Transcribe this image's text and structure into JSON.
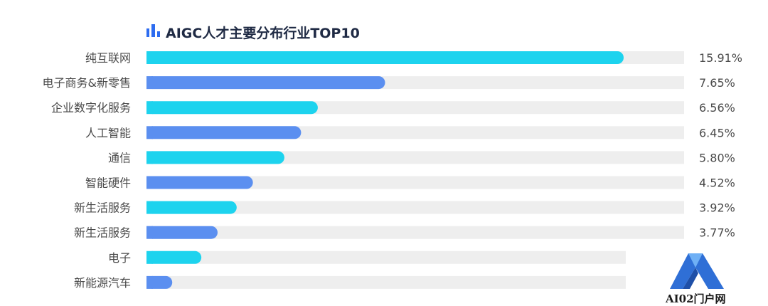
{
  "chart_data": {
    "type": "bar",
    "orientation": "horizontal",
    "title": "AIGC人才主要分布行业TOP10",
    "categories": [
      "纯互联网",
      "电子商务&新零售",
      "企业数字化服务",
      "人工智能",
      "通信",
      "智能硬件",
      "新生活服务",
      "新生活服务",
      "电子",
      "新能源汽车"
    ],
    "values": [
      15.91,
      7.65,
      6.56,
      6.45,
      5.8,
      4.52,
      3.92,
      3.77,
      null,
      null
    ],
    "value_labels": [
      "15.91%",
      "7.65%",
      "6.56%",
      "6.45%",
      "5.80%",
      "4.52%",
      "3.92%",
      "3.77%",
      "",
      ""
    ],
    "bar_lengths_percent_of_max": [
      100,
      50.0,
      35.9,
      32.4,
      28.9,
      22.3,
      18.9,
      14.9,
      11.5,
      5.4
    ],
    "unit": "%",
    "legend": "none",
    "grid": false
  },
  "colors": {
    "bar_cyan": "#1dd3ee",
    "bar_blue": "#5b8ff0",
    "track": "#eeeeee",
    "title_icon": "#2d6cf0",
    "text": "#4a4a4a",
    "title": "#1f2a44"
  },
  "icons": {
    "title_icon": "bar-chart-icon",
    "watermark_logo": "a-logo-icon"
  },
  "watermark": {
    "text": "AI02门户网"
  }
}
